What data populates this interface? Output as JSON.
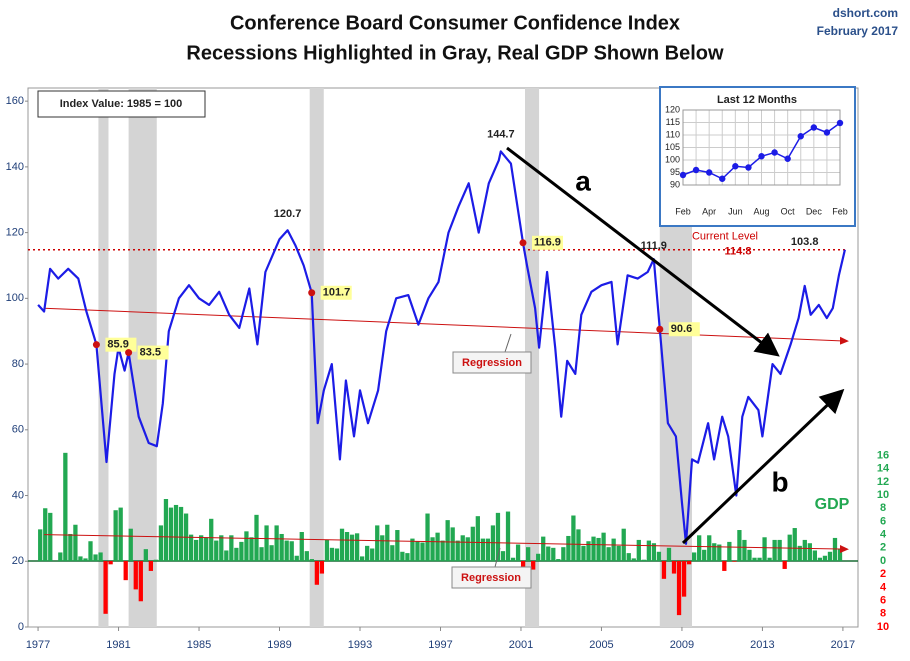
{
  "chart_data": [
    {
      "type": "line",
      "title": "Conference Board Consumer Confidence Index",
      "subtitle": "Recessions Highlighted in Gray, Real GDP Shown Below",
      "source": "dshort.com",
      "date": "February 2017",
      "note": "Index Value: 1985 = 100",
      "xlim": [
        1976.5,
        2017.75
      ],
      "xticks": [
        1977,
        1981,
        1985,
        1989,
        1993,
        1997,
        2001,
        2005,
        2009,
        2013,
        2017
      ],
      "ylim": [
        0,
        164
      ],
      "yticks": [
        0,
        20,
        40,
        60,
        80,
        100,
        120,
        140,
        160
      ],
      "y2lim": [
        -10,
        71.7
      ],
      "y2ticks": [
        16,
        14,
        12,
        10,
        8,
        6,
        4,
        2,
        0,
        {
          "value": -2,
          "label": "2"
        },
        {
          "value": -4,
          "label": "4"
        },
        {
          "value": -6,
          "label": "6"
        },
        {
          "value": -8,
          "label": "8"
        },
        {
          "value": -10,
          "label": "10"
        }
      ],
      "recessions": [
        [
          1980.0,
          1980.5
        ],
        [
          1981.5,
          1982.9
        ],
        [
          1990.5,
          1991.2
        ],
        [
          2001.2,
          2001.9
        ],
        [
          2007.9,
          2009.5
        ]
      ],
      "recession_color": "#d4d4d4",
      "series": [
        {
          "type": "line",
          "color": "#1c1ce6",
          "x": [
            1977.0,
            1977.3,
            1977.6,
            1978.0,
            1978.5,
            1979.0,
            1979.4,
            1979.8,
            1979.9,
            1980.4,
            1980.8,
            1981.0,
            1981.3,
            1981.5,
            1982.0,
            1982.5,
            1982.9,
            1983.2,
            1983.5,
            1984.0,
            1984.5,
            1985.0,
            1985.5,
            1986.0,
            1986.5,
            1987.0,
            1987.5,
            1987.9,
            1988.3,
            1989.0,
            1989.4,
            1989.8,
            1990.2,
            1990.6,
            1990.9,
            1991.2,
            1991.6,
            1992.0,
            1992.3,
            1992.7,
            1993.0,
            1993.4,
            1993.9,
            1994.3,
            1994.8,
            1995.4,
            1995.9,
            1996.4,
            1996.9,
            1997.4,
            1997.9,
            1998.4,
            1998.9,
            1999.4,
            1999.9,
            2000.0,
            2000.5,
            2001.1,
            2001.3,
            2001.7,
            2001.9,
            2002.3,
            2002.7,
            2003.0,
            2003.3,
            2003.7,
            2004.0,
            2004.5,
            2005.0,
            2005.5,
            2005.8,
            2006.3,
            2006.8,
            2007.3,
            2007.6,
            2007.9,
            2008.3,
            2008.7,
            2009.0,
            2009.2,
            2009.5,
            2009.8,
            2010.3,
            2010.6,
            2011.0,
            2011.3,
            2011.7,
            2012.0,
            2012.3,
            2012.8,
            2013.0,
            2013.5,
            2013.9,
            2014.4,
            2014.8,
            2015.1,
            2015.4,
            2015.8,
            2016.2,
            2016.5,
            2016.8,
            2017.1
          ],
          "values": [
            98,
            96,
            109,
            106,
            109,
            106,
            96,
            88,
            85.9,
            50.2,
            77,
            85,
            78,
            83.5,
            64,
            56,
            55,
            68,
            90,
            100,
            104,
            100,
            98,
            102,
            95,
            91,
            103,
            86,
            108,
            118,
            120.7,
            116,
            110,
            101.7,
            62,
            72,
            80,
            51,
            75,
            58,
            72,
            62,
            72,
            90,
            100,
            101,
            92,
            100,
            105,
            120,
            128,
            135,
            120,
            135,
            142,
            144.7,
            141,
            116.9,
            110,
            97,
            85,
            108,
            85,
            64,
            81,
            77,
            95,
            102,
            104,
            105,
            86,
            107,
            106,
            108,
            111.9,
            90.6,
            62,
            58,
            38,
            25.3,
            51,
            50,
            62,
            51,
            64,
            58,
            40,
            64,
            70,
            66,
            58,
            80,
            77,
            86,
            94,
            103.8,
            95,
            98,
            94,
            97,
            107,
            114.8
          ]
        },
        {
          "type": "bar",
          "name": "GDP",
          "axis": "y2",
          "color": "#22a852",
          "negative_color": "#ff0000",
          "x": [
            1977,
            1977.25,
            1977.5,
            1977.75,
            1978,
            1978.25,
            1978.5,
            1978.75,
            1979,
            1979.25,
            1979.5,
            1979.75,
            1980,
            1980.25,
            1980.5,
            1980.75,
            1981,
            1981.25,
            1981.5,
            1981.75,
            1982,
            1982.25,
            1982.5,
            1982.75,
            1983,
            1983.25,
            1983.5,
            1983.75,
            1984,
            1984.25,
            1984.5,
            1984.75,
            1985,
            1985.25,
            1985.5,
            1985.75,
            1986,
            1986.25,
            1986.5,
            1986.75,
            1987,
            1987.25,
            1987.5,
            1987.75,
            1988,
            1988.25,
            1988.5,
            1988.75,
            1989,
            1989.25,
            1989.5,
            1989.75,
            1990,
            1990.25,
            1990.5,
            1990.75,
            1991,
            1991.25,
            1991.5,
            1991.75,
            1992,
            1992.25,
            1992.5,
            1992.75,
            1993,
            1993.25,
            1993.5,
            1993.75,
            1994,
            1994.25,
            1994.5,
            1994.75,
            1995,
            1995.25,
            1995.5,
            1995.75,
            1996,
            1996.25,
            1996.5,
            1996.75,
            1997,
            1997.25,
            1997.5,
            1997.75,
            1998,
            1998.25,
            1998.5,
            1998.75,
            1999,
            1999.25,
            1999.5,
            1999.75,
            2000,
            2000.25,
            2000.5,
            2000.75,
            2001,
            2001.25,
            2001.5,
            2001.75,
            2002,
            2002.25,
            2002.5,
            2002.75,
            2003,
            2003.25,
            2003.5,
            2003.75,
            2004,
            2004.25,
            2004.5,
            2004.75,
            2005,
            2005.25,
            2005.5,
            2005.75,
            2006,
            2006.25,
            2006.5,
            2006.75,
            2007,
            2007.25,
            2007.5,
            2007.75,
            2008,
            2008.25,
            2008.5,
            2008.75,
            2009,
            2009.25,
            2009.5,
            2009.75,
            2010,
            2010.25,
            2010.5,
            2010.75,
            2011,
            2011.25,
            2011.5,
            2011.75,
            2012,
            2012.25,
            2012.5,
            2012.75,
            2013,
            2013.25,
            2013.5,
            2013.75,
            2014,
            2014.25,
            2014.5,
            2014.75,
            2015,
            2015.25,
            2015.5,
            2015.75,
            2016,
            2016.25,
            2016.5,
            2016.75
          ],
          "values": [
            4.8,
            8.0,
            7.3,
            0.0,
            1.3,
            16.4,
            4.1,
            5.5,
            0.7,
            0.4,
            3.0,
            1.0,
            1.3,
            -8.0,
            -0.5,
            7.7,
            8.1,
            -2.9,
            4.9,
            -4.3,
            -6.1,
            1.8,
            -1.5,
            0.2,
            5.4,
            9.4,
            8.1,
            8.5,
            8.2,
            7.2,
            4.0,
            3.2,
            3.9,
            3.6,
            6.4,
            3.1,
            3.9,
            1.6,
            3.9,
            2.0,
            2.9,
            4.5,
            3.6,
            7.0,
            2.1,
            5.4,
            2.4,
            5.4,
            4.1,
            3.1,
            3.0,
            0.8,
            4.4,
            1.5,
            0.3,
            -3.6,
            -1.9,
            3.2,
            2.0,
            1.9,
            4.9,
            4.4,
            4.0,
            4.2,
            0.7,
            2.3,
            1.9,
            5.4,
            3.9,
            5.5,
            2.4,
            4.7,
            1.4,
            1.2,
            3.4,
            3.0,
            2.8,
            7.2,
            3.6,
            4.3,
            3.1,
            6.2,
            5.1,
            3.1,
            3.9,
            3.6,
            5.2,
            6.8,
            3.4,
            3.4,
            5.4,
            7.3,
            1.5,
            7.5,
            0.5,
            2.5,
            -1.1,
            2.1,
            -1.3,
            1.1,
            3.7,
            2.2,
            2.0,
            0.3,
            2.1,
            3.8,
            6.9,
            4.8,
            2.3,
            3.0,
            3.7,
            3.5,
            4.3,
            2.1,
            3.4,
            2.3,
            4.9,
            1.2,
            0.4,
            3.2,
            0.2,
            3.1,
            2.7,
            1.4,
            -2.7,
            2.0,
            -1.9,
            -8.2,
            -5.4,
            -0.5,
            1.3,
            3.9,
            1.7,
            3.9,
            2.7,
            2.5,
            -1.5,
            2.9,
            -0.1,
            4.7,
            3.2,
            1.7,
            0.5,
            0.5,
            3.6,
            0.5,
            3.2,
            3.2,
            -1.2,
            4.0,
            5.0,
            2.3,
            3.2,
            2.7,
            1.6,
            0.5,
            0.8,
            1.4,
            3.5,
            1.9
          ]
        }
      ],
      "regressions": [
        {
          "label": "Regression",
          "color": "#cc1111",
          "x": [
            1977.3,
            2017.2
          ],
          "values": [
            97,
            87
          ]
        },
        {
          "label": "Regression",
          "color": "#cc1111",
          "axis": "y2",
          "x": [
            1977.3,
            2017.2
          ],
          "values": [
            4.0,
            1.8
          ]
        }
      ],
      "current_level": {
        "label": "Current Level",
        "value": 114.8,
        "color": "#cc0000"
      },
      "peaks": [
        {
          "x": 1989.4,
          "value": 120.7
        },
        {
          "x": 2000.0,
          "value": 144.7
        },
        {
          "x": 2007.6,
          "value": 111.9
        },
        {
          "x": 2015.1,
          "value": 103.8
        }
      ],
      "marked_points": [
        {
          "x": 1979.9,
          "value": 85.9
        },
        {
          "x": 1981.5,
          "value": 83.5
        },
        {
          "x": 1990.6,
          "value": 101.7
        },
        {
          "x": 2001.1,
          "value": 116.9
        },
        {
          "x": 2007.9,
          "value": 90.6
        }
      ],
      "trend_labels": [
        "a",
        "b"
      ]
    },
    {
      "type": "line",
      "title": "Last 12 Months",
      "categories": [
        "Feb",
        null,
        "Apr",
        null,
        "Jun",
        null,
        "Aug",
        null,
        "Oct",
        null,
        "Dec",
        null,
        "Feb"
      ],
      "values": [
        94,
        96,
        95,
        92.5,
        97.5,
        97,
        101.5,
        103,
        100.5,
        109.5,
        113,
        111,
        114.8
      ],
      "ylim": [
        90,
        120
      ],
      "yticks": [
        90,
        95,
        100,
        105,
        110,
        115,
        120
      ],
      "color": "#1c1ce6",
      "grid": true
    }
  ]
}
